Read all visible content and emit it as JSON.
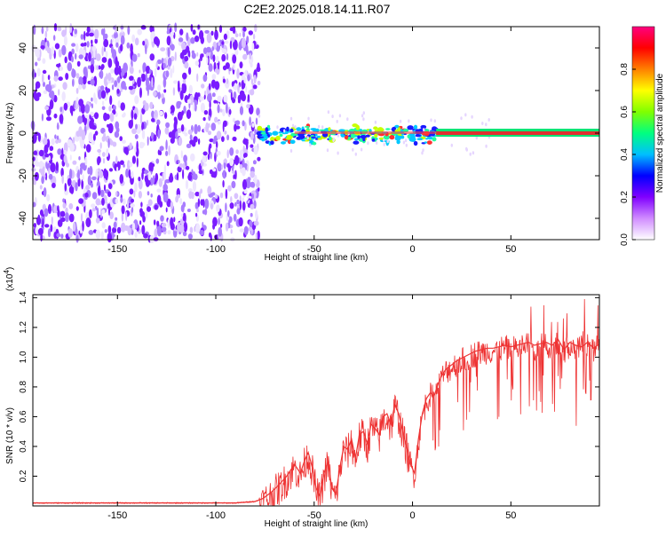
{
  "figure": {
    "title": "C2E2.2025.018.14.11.R07"
  },
  "chart_data": [
    {
      "type": "heatmap",
      "title": "C2E2.2025.018.14.11.R07",
      "xlabel": "Height of straight line (km)",
      "ylabel": "Frequency (Hz)",
      "xlim": [
        -193,
        95
      ],
      "ylim": [
        -50,
        50
      ],
      "x_ticks": [
        -150,
        -100,
        -50,
        0,
        50
      ],
      "y_ticks": [
        -40,
        -20,
        0,
        20,
        40
      ],
      "noise_region_x": [
        -193,
        -78
      ],
      "signal_line_frequency_hz": 0,
      "signal_start_x": -78,
      "colorbar": {
        "label": "Normalized spectral amplitude",
        "range": [
          0,
          1
        ],
        "ticks": [
          "0.0",
          "0.2",
          "0.4",
          "0.6",
          "0.8"
        ],
        "colormap": [
          "#ffffff",
          "#d08cff",
          "#8000ff",
          "#0000ff",
          "#00bfff",
          "#00ff80",
          "#80ff00",
          "#ffff00",
          "#ff8000",
          "#ff0000",
          "#ff0080"
        ]
      }
    },
    {
      "type": "line",
      "xlabel": "Height of straight line (km)",
      "ylabel": "SNR (10 * v/v)",
      "scale_label": "(x10",
      "scale_exponent": "4",
      "scale_close": ")",
      "xlim": [
        -193,
        95
      ],
      "ylim": [
        0,
        1.42
      ],
      "x_ticks": [
        -150,
        -100,
        -50,
        0,
        50
      ],
      "y_ticks": [
        "0.2",
        "0.4",
        "0.6",
        "0.8",
        "1.0",
        "1.2",
        "1.4"
      ],
      "color": "#ee3333",
      "series": [
        {
          "name": "SNR",
          "x": [
            -193,
            -170,
            -150,
            -130,
            -110,
            -90,
            -80,
            -76,
            -72,
            -68,
            -64,
            -60,
            -57,
            -55,
            -53,
            -51,
            -49,
            -47,
            -45,
            -43,
            -41,
            -39,
            -37,
            -35,
            -33,
            -31,
            -29,
            -27,
            -25,
            -23,
            -21,
            -19,
            -17,
            -15,
            -13,
            -11,
            -9,
            -7,
            -5,
            -3,
            -1,
            1,
            3,
            5,
            7,
            9,
            11,
            13,
            15,
            17,
            20,
            23,
            26,
            29,
            32,
            35,
            38,
            41,
            44,
            47,
            50,
            53,
            56,
            59,
            62,
            65,
            68,
            71,
            74,
            77,
            80,
            83,
            86,
            89,
            92,
            95
          ],
          "y": [
            0.02,
            0.02,
            0.02,
            0.02,
            0.02,
            0.02,
            0.03,
            0.05,
            0.09,
            0.14,
            0.2,
            0.28,
            0.22,
            0.3,
            0.36,
            0.26,
            0.12,
            0.06,
            0.22,
            0.3,
            0.12,
            0.08,
            0.25,
            0.4,
            0.38,
            0.45,
            0.32,
            0.48,
            0.5,
            0.42,
            0.55,
            0.52,
            0.48,
            0.6,
            0.62,
            0.55,
            0.68,
            0.62,
            0.5,
            0.4,
            0.28,
            0.22,
            0.45,
            0.62,
            0.72,
            0.76,
            0.74,
            0.82,
            0.88,
            0.92,
            0.95,
            0.98,
            1.0,
            1.02,
            1.04,
            1.05,
            1.06,
            1.06,
            1.07,
            1.08,
            1.07,
            1.08,
            1.09,
            1.1,
            1.08,
            1.09,
            1.1,
            1.08,
            1.12,
            1.05,
            1.1,
            1.08,
            1.07,
            1.1,
            1.06,
            1.09
          ]
        }
      ]
    }
  ]
}
